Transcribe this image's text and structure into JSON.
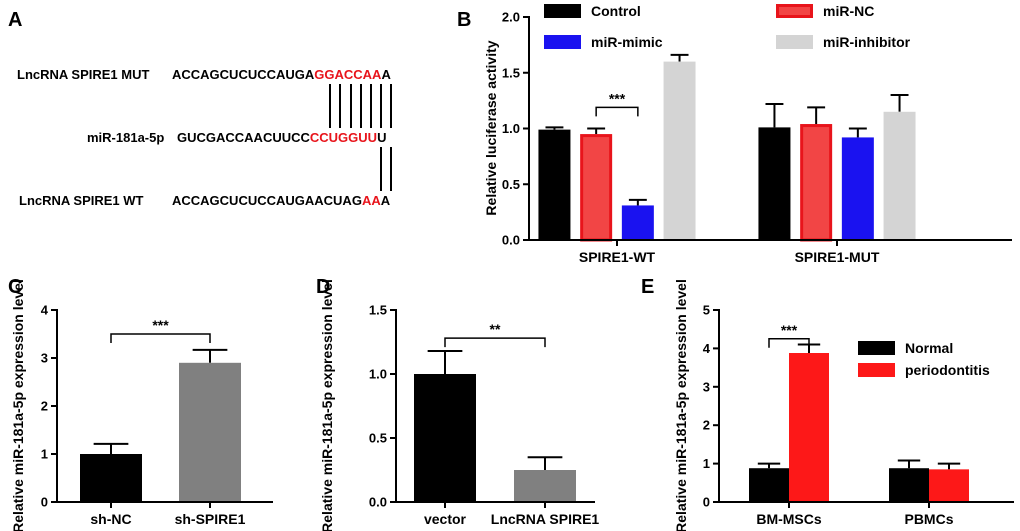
{
  "panels": {
    "A": {
      "letter": "A",
      "rows": [
        {
          "label": "LncRNA SPIRE1 MUT",
          "prefix": "ACCAGCUCUCCAUGA",
          "highlight": "GGACCAA",
          "suffix": "A"
        },
        {
          "label": "miR-181a-5p",
          "prefix": "GUCGACCAACUUCC",
          "highlight": "CCUGGUU",
          "suffix": "U"
        },
        {
          "label": "LncRNA SPIRE1 WT",
          "prefix": "ACCAGCUCUCCAUGAACUAG",
          "highlight": "AA",
          "suffix": "A"
        }
      ],
      "colors": {
        "normal": "#000000",
        "highlight": "#e8141b"
      }
    },
    "B": {
      "letter": "B"
    },
    "C": {
      "letter": "C"
    },
    "D": {
      "letter": "D"
    },
    "E": {
      "letter": "E"
    }
  },
  "chart_data": [
    {
      "id": "B",
      "type": "bar",
      "ylabel": "Relative luciferase activity",
      "ylim": [
        0,
        2.0
      ],
      "yticks": [
        "0.0",
        "0.5",
        "1.0",
        "1.5",
        "2.0"
      ],
      "ytick_values": [
        0,
        0.5,
        1.0,
        1.5,
        2.0
      ],
      "categories": [
        "SPIRE1-WT",
        "SPIRE1-MUT"
      ],
      "series": [
        {
          "name": "Control",
          "color": "#000000",
          "values": [
            0.99,
            1.01
          ],
          "errors": [
            0.02,
            0.21
          ]
        },
        {
          "name": "miR-NC",
          "color": "#f24545",
          "edge": "#e8141b",
          "values": [
            0.95,
            1.04
          ],
          "errors": [
            0.05,
            0.15
          ]
        },
        {
          "name": "miR-mimic",
          "color": "#1a12f0",
          "values": [
            0.31,
            0.92
          ],
          "errors": [
            0.05,
            0.08
          ]
        },
        {
          "name": "miR-inhibitor",
          "color": "#d4d4d4",
          "values": [
            1.6,
            1.15
          ],
          "errors": [
            0.06,
            0.15
          ]
        }
      ],
      "significance": [
        {
          "label": "***",
          "category": 0,
          "from_series": 1,
          "to_series": 2,
          "y": 1.19
        }
      ],
      "legend": "top-right"
    },
    {
      "id": "C",
      "type": "bar",
      "ylabel": "Relative miR-181a-5p expression level",
      "ylim": [
        0,
        4
      ],
      "yticks": [
        "0",
        "1",
        "2",
        "3",
        "4"
      ],
      "ytick_values": [
        0,
        1,
        2,
        3,
        4
      ],
      "categories": [
        "sh-NC",
        "sh-SPIRE1"
      ],
      "series": [
        {
          "name": "expression",
          "values": [
            1.0,
            2.9
          ],
          "errors": [
            0.21,
            0.27
          ],
          "colors": [
            "#000000",
            "#808080"
          ]
        }
      ],
      "significance": [
        {
          "label": "***",
          "from": 0,
          "to": 1,
          "y": 3.5
        }
      ]
    },
    {
      "id": "D",
      "type": "bar",
      "ylabel": "Relative miR-181a-5p expression level",
      "ylim": [
        0,
        1.5
      ],
      "yticks": [
        "0.0",
        "0.5",
        "1.0",
        "1.5"
      ],
      "ytick_values": [
        0,
        0.5,
        1.0,
        1.5
      ],
      "categories": [
        "vector",
        "LncRNA SPIRE1"
      ],
      "series": [
        {
          "name": "expression",
          "values": [
            1.0,
            0.25
          ],
          "errors": [
            0.18,
            0.1
          ],
          "colors": [
            "#000000",
            "#808080"
          ]
        }
      ],
      "significance": [
        {
          "label": "**",
          "from": 0,
          "to": 1,
          "y": 1.28
        }
      ]
    },
    {
      "id": "E",
      "type": "bar",
      "ylabel": "Relative miR-181a-5p expression level",
      "ylim": [
        0,
        5
      ],
      "yticks": [
        "0",
        "1",
        "2",
        "3",
        "4",
        "5"
      ],
      "ytick_values": [
        0,
        1,
        2,
        3,
        4,
        5
      ],
      "categories": [
        "BM-MSCs",
        "PBMCs"
      ],
      "series": [
        {
          "name": "Normal",
          "color": "#000000",
          "values": [
            0.88,
            0.88
          ],
          "errors": [
            0.12,
            0.2
          ]
        },
        {
          "name": "periodontitis",
          "color": "#fd1818",
          "values": [
            3.88,
            0.85
          ],
          "errors": [
            0.22,
            0.15
          ]
        }
      ],
      "significance": [
        {
          "label": "***",
          "category": 0,
          "from_series": 0,
          "to_series": 1,
          "y": 4.25
        }
      ],
      "legend": "right"
    }
  ]
}
